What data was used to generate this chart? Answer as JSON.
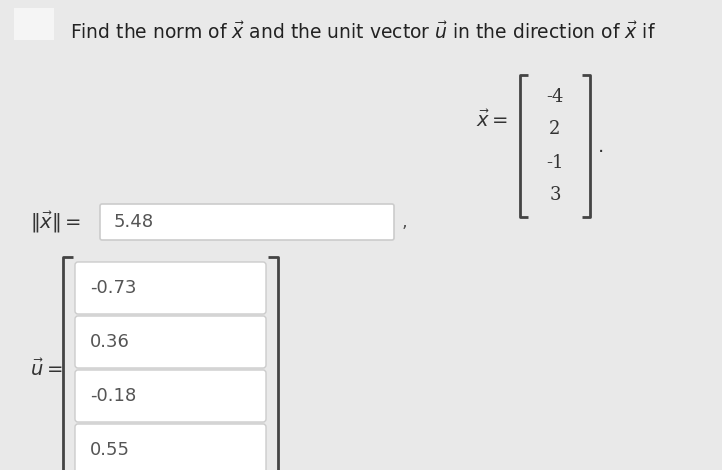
{
  "bg_color": "#e9e9e9",
  "title_text": "Find the norm of $\\vec{x}$ and the unit vector $\\vec{u}$ in the direction of $\\vec{x}$ if",
  "title_fontsize": 13.5,
  "title_color": "#222222",
  "square_color": "#f5f5f5",
  "vector_x_label": "$\\vec{x} =$",
  "vector_x_values": [
    "-4",
    "2",
    "-1",
    "3"
  ],
  "norm_label": "$\\|\\vec{x}\\| =$",
  "norm_value": "5.48",
  "u_label": "$\\vec{u} =$",
  "u_values": [
    "-0.73",
    "0.36",
    "-0.18",
    "0.55"
  ],
  "box_color": "#ffffff",
  "box_border_color": "#cccccc",
  "bracket_color": "#444444",
  "dot_after_matrix": ".",
  "comma_after_norm": ","
}
